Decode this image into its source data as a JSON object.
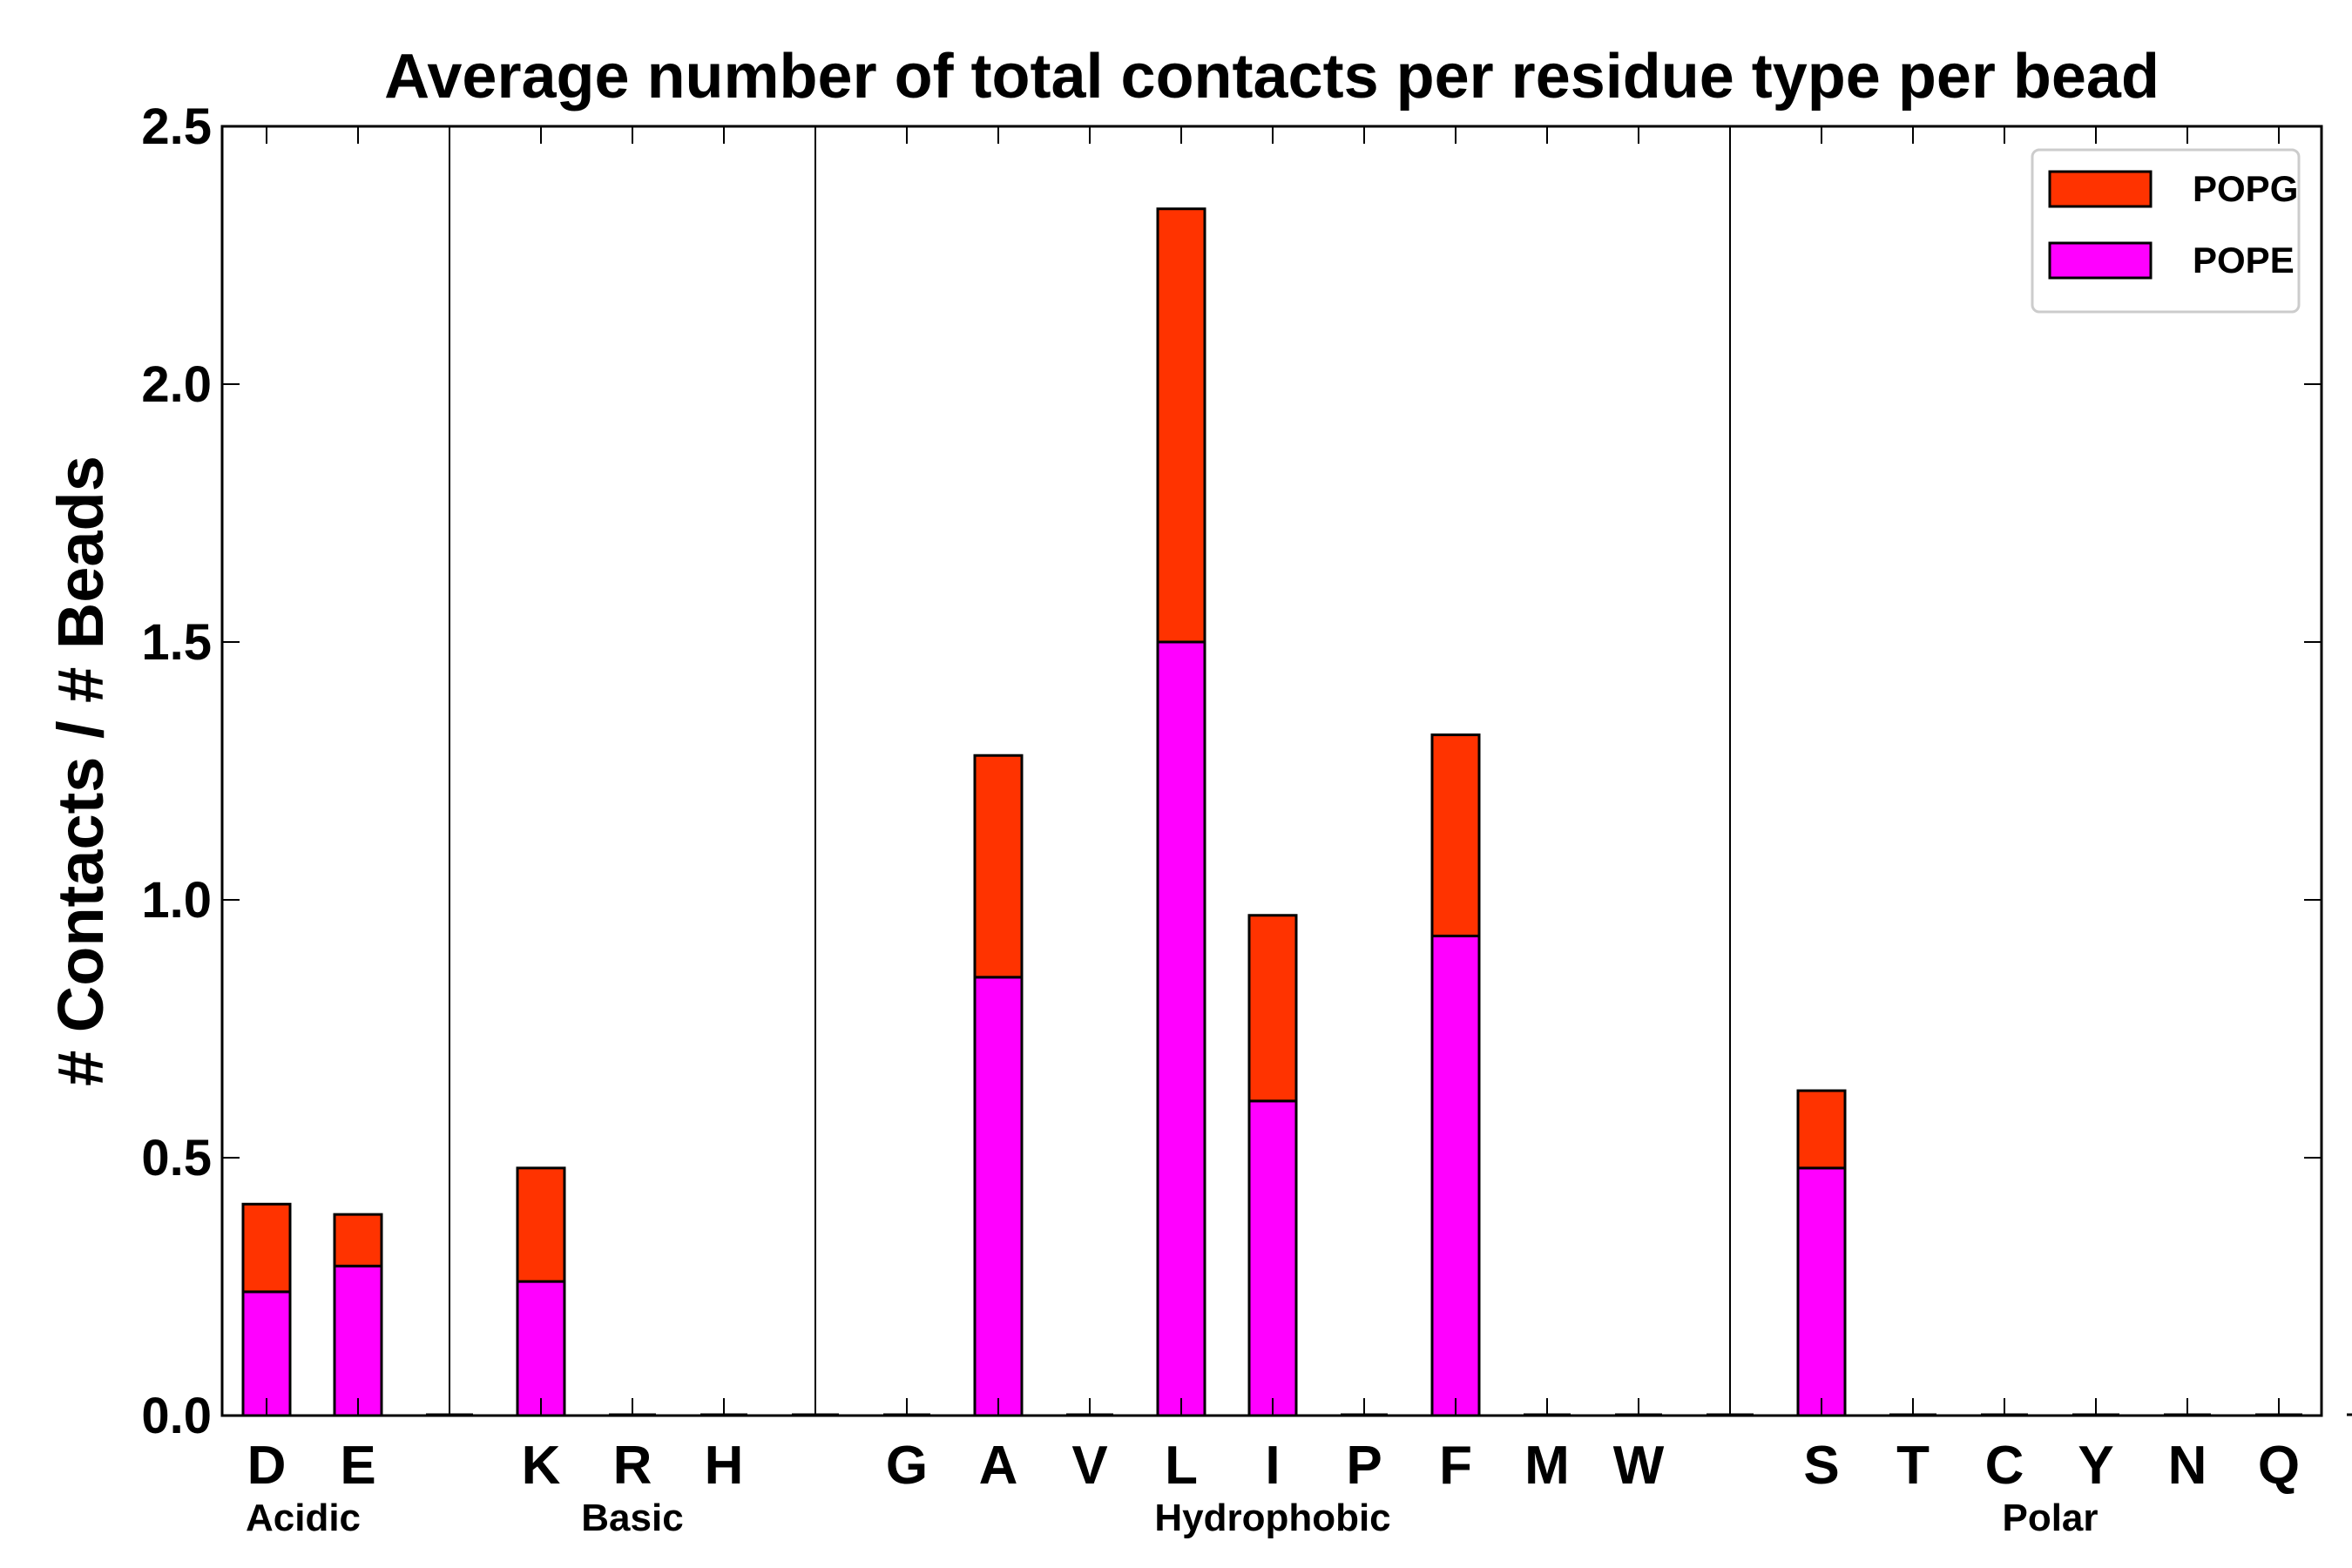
{
  "chart_data": {
    "type": "bar",
    "stacked": true,
    "title": "Average number of total contacts per residue type per bead",
    "xlabel": "",
    "ylabel": "# Contacts / # Beads",
    "ylim": [
      0,
      2.5
    ],
    "yticks": [
      "0.0",
      "0.5",
      "1.0",
      "1.5",
      "2.0",
      "2.5"
    ],
    "categories": [
      "D",
      "E",
      "K",
      "R",
      "H",
      "G",
      "A",
      "V",
      "L",
      "I",
      "P",
      "F",
      "M",
      "W",
      "S",
      "T",
      "C",
      "Y",
      "N",
      "Q"
    ],
    "category_slots": [
      0,
      1,
      3,
      4,
      5,
      7,
      8,
      9,
      10,
      11,
      12,
      13,
      14,
      15,
      17,
      18,
      19,
      20,
      21,
      22
    ],
    "empty_slots": [
      2,
      6,
      16,
      23
    ],
    "slot_count": 24,
    "groups": [
      {
        "name": "Acidic",
        "label_slot": 0.4
      },
      {
        "name": "Basic",
        "label_slot": 4.0
      },
      {
        "name": "Hydrophobic",
        "label_slot": 11.0
      },
      {
        "name": "Polar",
        "label_slot": 19.5
      }
    ],
    "group_dividers_after_slot": [
      2,
      6,
      16
    ],
    "series": [
      {
        "name": "POPE",
        "color": "#ff00ff",
        "values": [
          0.24,
          0.29,
          0.26,
          0,
          0,
          0,
          0.85,
          0,
          1.5,
          0.61,
          0,
          0.93,
          0,
          0,
          0.48,
          0,
          0,
          0,
          0,
          0
        ]
      },
      {
        "name": "POPG",
        "color": "#ff3300",
        "values": [
          0.17,
          0.1,
          0.22,
          0,
          0,
          0,
          0.43,
          0,
          0.84,
          0.36,
          0,
          0.39,
          0,
          0,
          0.15,
          0,
          0,
          0,
          0,
          0
        ]
      }
    ],
    "legend": {
      "position": "top-right",
      "order": [
        "POPG",
        "POPE"
      ]
    }
  }
}
